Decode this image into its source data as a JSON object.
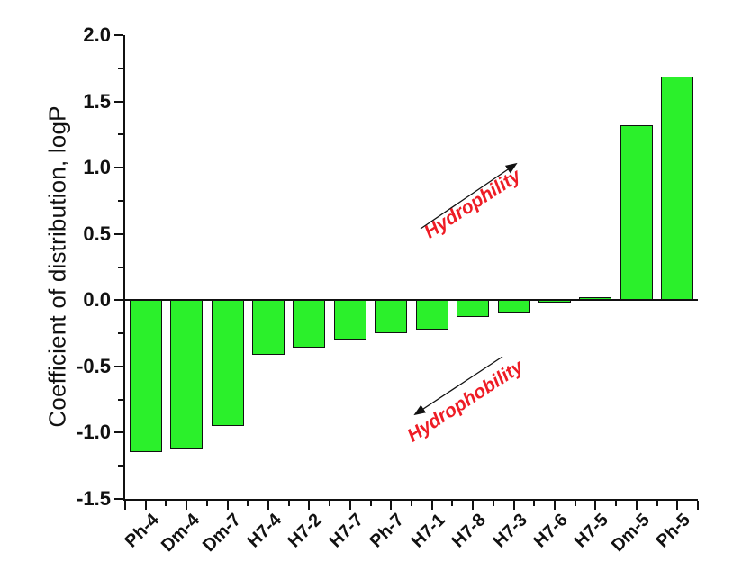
{
  "chart_data": {
    "type": "bar",
    "title": "",
    "categories": [
      "Ph-4",
      "Dm-4",
      "Dm-7",
      "H7-4",
      "H7-2",
      "H7-7",
      "Ph-7",
      "H7-1",
      "H7-8",
      "H7-3",
      "H7-6",
      "H7-5",
      "Dm-5",
      "Ph-5"
    ],
    "values": [
      -1.15,
      -1.12,
      -0.95,
      -0.41,
      -0.36,
      -0.3,
      -0.25,
      -0.22,
      -0.13,
      -0.09,
      -0.02,
      0.02,
      1.32,
      1.69
    ],
    "xlabel": "",
    "ylabel": "Coefficient of distribution, logP",
    "ylim": [
      -1.5,
      2.0
    ],
    "y_major_step": 0.5,
    "y_minor_step": 0.25,
    "y_tick_labels": [
      "2.0",
      "1.5",
      "1.0",
      "0.5",
      "0.0",
      "-0.5",
      "-1.0",
      "-1.5"
    ],
    "grid": false,
    "legend": null,
    "bar_color": "#2bf02b",
    "bar_border_color": "#111111",
    "axis_color": "#111111",
    "annotations": [
      {
        "label": "Hydrophility",
        "color": "#ee1c25",
        "angle_deg": -33,
        "arrow_direction": "up-right"
      },
      {
        "label": "Hydrophobility",
        "color": "#ee1c25",
        "angle_deg": -33,
        "arrow_direction": "down-left"
      }
    ]
  }
}
